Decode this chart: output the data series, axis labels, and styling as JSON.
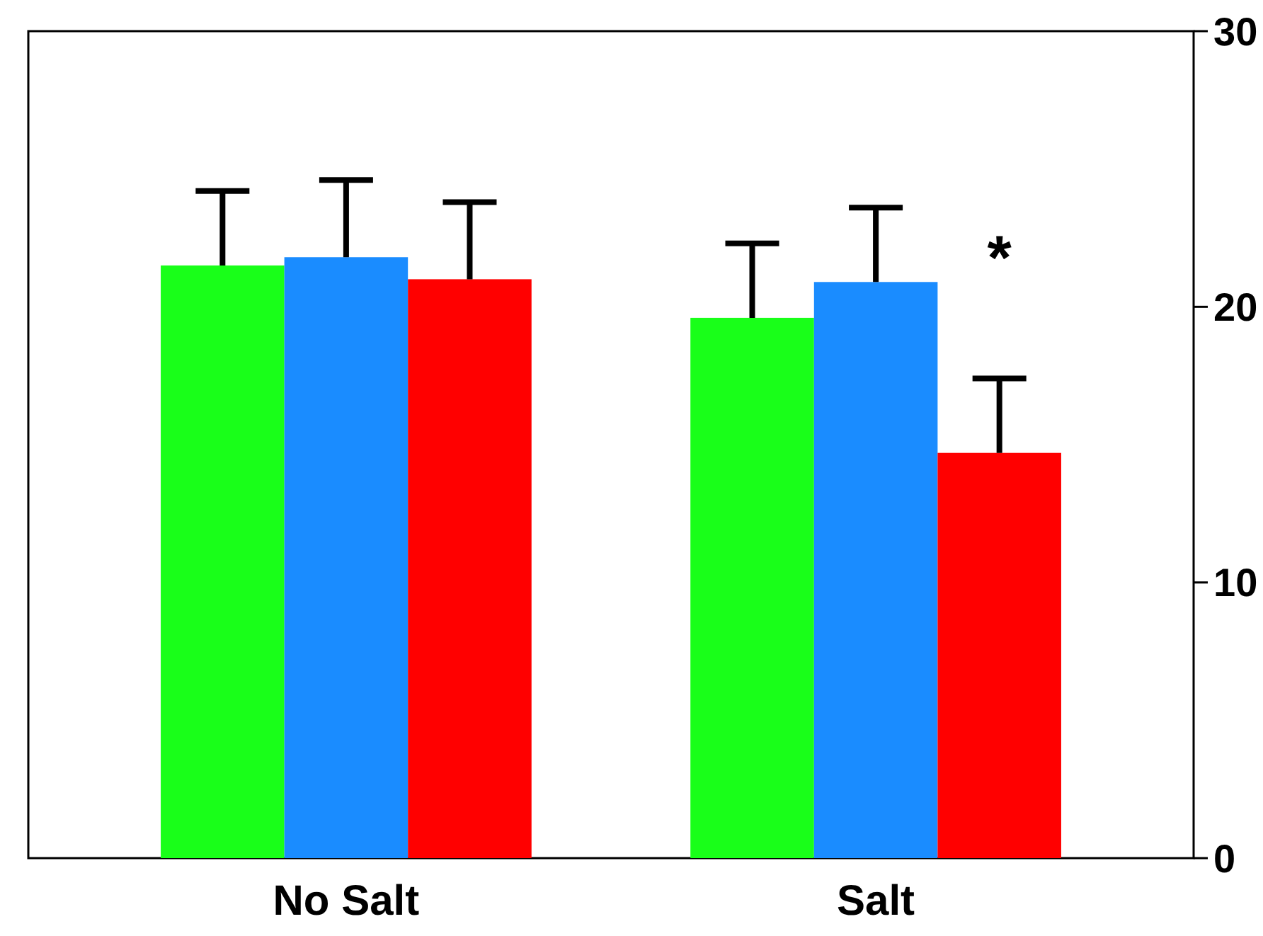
{
  "chart_data": {
    "type": "bar",
    "categories": [
      "No Salt",
      "Salt"
    ],
    "series": [
      {
        "color": "#19ff19",
        "values": [
          21.5,
          19.6
        ],
        "errors": [
          [
            21.5,
            24.2
          ],
          [
            19.6,
            22.3
          ]
        ]
      },
      {
        "color": "#1a8cff",
        "values": [
          21.8,
          20.9
        ],
        "errors": [
          [
            21.8,
            24.6
          ],
          [
            20.9,
            23.6
          ]
        ]
      },
      {
        "color": "#ff0000",
        "values": [
          21.0,
          14.7
        ],
        "errors": [
          [
            21.0,
            23.8
          ],
          [
            14.7,
            17.4
          ]
        ]
      }
    ],
    "ylim": [
      0,
      30
    ],
    "yticks": [
      0,
      10,
      20,
      30
    ],
    "grid": false,
    "annotations": [
      "*"
    ]
  }
}
